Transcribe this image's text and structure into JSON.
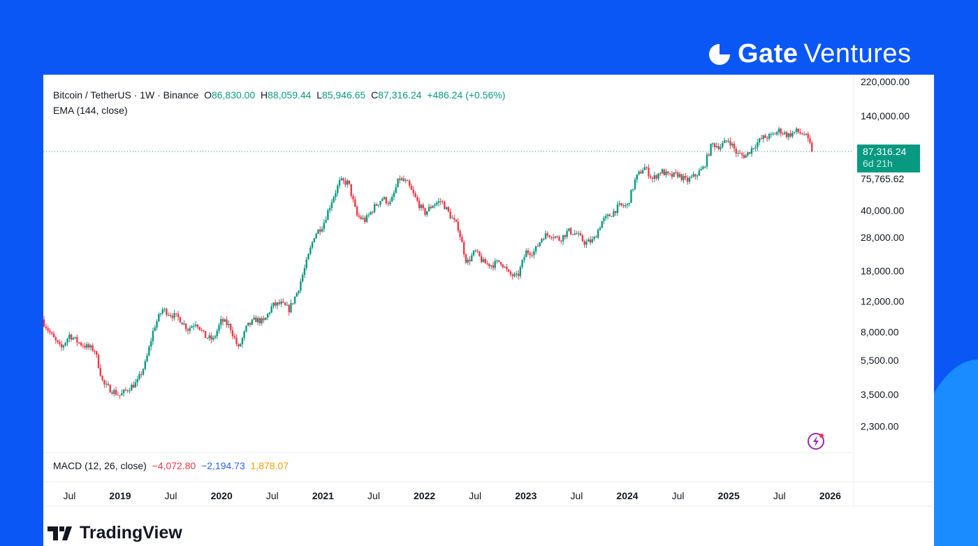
{
  "brand": {
    "name_bold": "Gate",
    "name_light": "Ventures"
  },
  "header": {
    "symbol": "Bitcoin / TetherUS · 1W · Binance",
    "open_label": "O",
    "open": "86,830.00",
    "high_label": "H",
    "high": "88,059.44",
    "low_label": "L",
    "low": "85,946.65",
    "close_label": "C",
    "close": "87,316.24",
    "change": "+486.24 (+0.56%)",
    "ema": "EMA (144, close)"
  },
  "price_tag": {
    "price": "87,316.24",
    "countdown": "6d 21h"
  },
  "ema_label": "75,765.62",
  "macd": {
    "label": "MACD (12, 26, close)",
    "macd": "−4,072.80",
    "signal": "−2,194.73",
    "hist": "1,878.07"
  },
  "footer": {
    "tradingview": "TradingView"
  },
  "colors": {
    "up": "#089981",
    "down": "#f23645",
    "background": "#0b57f6",
    "macd": "#f23645",
    "signal": "#2962ff",
    "hist": "#ff9800"
  },
  "chart_data": {
    "type": "candlestick",
    "title": "Bitcoin / TetherUS · 1W · Binance",
    "y_scale": "log",
    "ylim": [
      2000,
      240000
    ],
    "y_ticks": [
      {
        "v": 220000,
        "label": "220,000.00"
      },
      {
        "v": 140000,
        "label": "140,000.00"
      },
      {
        "v": 40000,
        "label": "40,000.00"
      },
      {
        "v": 28000,
        "label": "28,000.00"
      },
      {
        "v": 18000,
        "label": "18,000.00"
      },
      {
        "v": 12000,
        "label": "12,000.00"
      },
      {
        "v": 8000,
        "label": "8,000.00"
      },
      {
        "v": 5500,
        "label": "5,500.00"
      },
      {
        "v": 3500,
        "label": "3,500.00"
      },
      {
        "v": 2300,
        "label": "2,300.00"
      }
    ],
    "x_ticks": [
      {
        "t": 2018.5,
        "label": "Jul"
      },
      {
        "t": 2019,
        "label": "2019"
      },
      {
        "t": 2019.5,
        "label": "Jul"
      },
      {
        "t": 2020,
        "label": "2020"
      },
      {
        "t": 2020.5,
        "label": "Jul"
      },
      {
        "t": 2021,
        "label": "2021"
      },
      {
        "t": 2021.5,
        "label": "Jul"
      },
      {
        "t": 2022,
        "label": "2022"
      },
      {
        "t": 2022.5,
        "label": "Jul"
      },
      {
        "t": 2023,
        "label": "2023"
      },
      {
        "t": 2023.5,
        "label": "Jul"
      },
      {
        "t": 2024,
        "label": "2024"
      },
      {
        "t": 2024.5,
        "label": "Jul"
      },
      {
        "t": 2025,
        "label": "2025"
      },
      {
        "t": 2025.5,
        "label": "Jul"
      },
      {
        "t": 2026,
        "label": "2026"
      }
    ],
    "last_price": 87316.24,
    "monthly_closes": {
      "start": "2018-04",
      "values": [
        9000,
        7500,
        6400,
        7700,
        7000,
        6600,
        6300,
        4000,
        3700,
        3450,
        3800,
        4100,
        5300,
        8500,
        10800,
        10100,
        9600,
        8300,
        9150,
        7550,
        7200,
        9350,
        8600,
        6400,
        8600,
        9450,
        9140,
        11350,
        11650,
        10780,
        13800,
        19700,
        29000,
        33100,
        45200,
        58800,
        57700,
        37300,
        35000,
        41500,
        47100,
        43800,
        61300,
        57000,
        46300,
        38500,
        43200,
        45500,
        37700,
        31800,
        19900,
        23300,
        20000,
        19400,
        20500,
        17150,
        16550,
        23100,
        23150,
        28500,
        29250,
        27200,
        30500,
        29250,
        26000,
        26950,
        34650,
        37700,
        42300,
        42600,
        61200,
        71300,
        60600,
        67500,
        62700,
        64600,
        58900,
        63300,
        70200,
        96400,
        93400,
        102400,
        84300,
        82500,
        94200,
        104600,
        107100,
        115700,
        108200,
        114000,
        109500,
        87316
      ]
    }
  }
}
